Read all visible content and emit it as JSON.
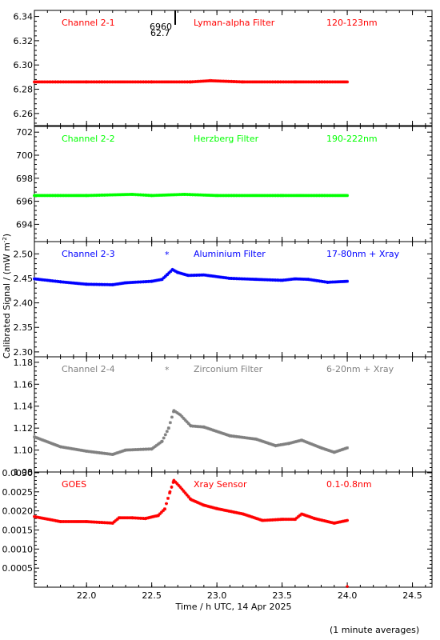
{
  "chart_data": {
    "type": "scatter",
    "xlabel": "Time / h UTC, 14 Apr 2025",
    "ylabel": "Calibrated Signal / (mW m",
    "ylabel_sup": "-2",
    "ylabel_close": ")",
    "xlim": [
      21.6,
      24.65
    ],
    "xticks": [
      "22.0",
      "22.5",
      "23.0",
      "23.5",
      "24.0",
      "24.5"
    ],
    "footnote": "(1 minute averages)",
    "panels": [
      {
        "name": "Channel 2-1",
        "filter": "Lyman-alpha Filter",
        "range": "120-123nm",
        "color": "#ff0000",
        "ylim": [
          6.25,
          6.345
        ],
        "yticks": [
          "6.26",
          "6.28",
          "6.30",
          "6.32",
          "6.34"
        ],
        "annot": [
          "6960",
          "62.7"
        ],
        "series": [
          [
            21.6,
            6.286
          ],
          [
            22.0,
            6.286
          ],
          [
            22.5,
            6.286
          ],
          [
            22.8,
            6.286
          ],
          [
            22.95,
            6.287
          ],
          [
            23.2,
            6.286
          ],
          [
            23.6,
            6.286
          ],
          [
            24.0,
            6.286
          ]
        ]
      },
      {
        "name": "Channel 2-2",
        "filter": "Herzberg Filter",
        "range": "190-222nm",
        "color": "#00ff00",
        "ylim": [
          692.5,
          702.5
        ],
        "yticks": [
          "694",
          "696",
          "698",
          "700",
          "702"
        ],
        "series": [
          [
            21.6,
            696.5
          ],
          [
            22.0,
            696.5
          ],
          [
            22.35,
            696.6
          ],
          [
            22.5,
            696.5
          ],
          [
            22.75,
            696.6
          ],
          [
            23.0,
            696.5
          ],
          [
            23.5,
            696.5
          ],
          [
            24.0,
            696.5
          ]
        ]
      },
      {
        "name": "Channel 2-3",
        "filter": "Aluminium Filter",
        "range": "17-80nm + Xray",
        "color": "#0000ff",
        "ylim": [
          2.29,
          2.525
        ],
        "star": "*",
        "yticks": [
          "2.30",
          "2.35",
          "2.40",
          "2.45",
          "2.50"
        ],
        "series": [
          [
            21.6,
            2.449
          ],
          [
            21.8,
            2.443
          ],
          [
            22.0,
            2.438
          ],
          [
            22.2,
            2.437
          ],
          [
            22.3,
            2.441
          ],
          [
            22.5,
            2.444
          ],
          [
            22.58,
            2.448
          ],
          [
            22.62,
            2.458
          ],
          [
            22.66,
            2.468
          ],
          [
            22.7,
            2.462
          ],
          [
            22.78,
            2.456
          ],
          [
            22.9,
            2.457
          ],
          [
            23.1,
            2.45
          ],
          [
            23.3,
            2.448
          ],
          [
            23.5,
            2.446
          ],
          [
            23.6,
            2.449
          ],
          [
            23.7,
            2.448
          ],
          [
            23.85,
            2.442
          ],
          [
            24.0,
            2.444
          ]
        ]
      },
      {
        "name": "Channel 2-4",
        "filter": "Zirconium Filter",
        "range": "6-20nm + Xray",
        "color": "#808080",
        "ylim": [
          1.08,
          1.185
        ],
        "star": "*",
        "yticks": [
          "1.08",
          "1.10",
          "1.12",
          "1.14",
          "1.16",
          "1.18"
        ],
        "series": [
          [
            21.6,
            1.112
          ],
          [
            21.8,
            1.103
          ],
          [
            22.0,
            1.099
          ],
          [
            22.2,
            1.096
          ],
          [
            22.3,
            1.1
          ],
          [
            22.5,
            1.101
          ],
          [
            22.58,
            1.108
          ],
          [
            22.63,
            1.12
          ],
          [
            22.67,
            1.136
          ],
          [
            22.72,
            1.132
          ],
          [
            22.8,
            1.122
          ],
          [
            22.9,
            1.121
          ],
          [
            23.1,
            1.113
          ],
          [
            23.3,
            1.11
          ],
          [
            23.45,
            1.104
          ],
          [
            23.55,
            1.106
          ],
          [
            23.65,
            1.109
          ],
          [
            23.8,
            1.102
          ],
          [
            23.9,
            1.098
          ],
          [
            24.0,
            1.102
          ]
        ]
      },
      {
        "name": "GOES",
        "filter": "Xray Sensor",
        "range": "0.1-0.8nm",
        "color": "#ff0000",
        "ylim": [
          0.0,
          0.00302
        ],
        "yticks": [
          "0.0005",
          "0.0010",
          "0.0015",
          "0.0020",
          "0.0025",
          "0.0030"
        ],
        "series": [
          [
            21.6,
            0.00185
          ],
          [
            21.8,
            0.00172
          ],
          [
            22.0,
            0.00172
          ],
          [
            22.2,
            0.00168
          ],
          [
            22.25,
            0.00182
          ],
          [
            22.35,
            0.00182
          ],
          [
            22.45,
            0.0018
          ],
          [
            22.55,
            0.00188
          ],
          [
            22.6,
            0.00205
          ],
          [
            22.64,
            0.0025
          ],
          [
            22.67,
            0.0028
          ],
          [
            22.72,
            0.00262
          ],
          [
            22.8,
            0.0023
          ],
          [
            22.9,
            0.00215
          ],
          [
            23.0,
            0.00206
          ],
          [
            23.2,
            0.00192
          ],
          [
            23.35,
            0.00175
          ],
          [
            23.5,
            0.00178
          ],
          [
            23.6,
            0.00178
          ],
          [
            23.65,
            0.00192
          ],
          [
            23.75,
            0.0018
          ],
          [
            23.9,
            0.00168
          ],
          [
            24.0,
            0.00175
          ]
        ],
        "extra": [
          [
            24.0,
            2e-05
          ]
        ]
      }
    ]
  }
}
